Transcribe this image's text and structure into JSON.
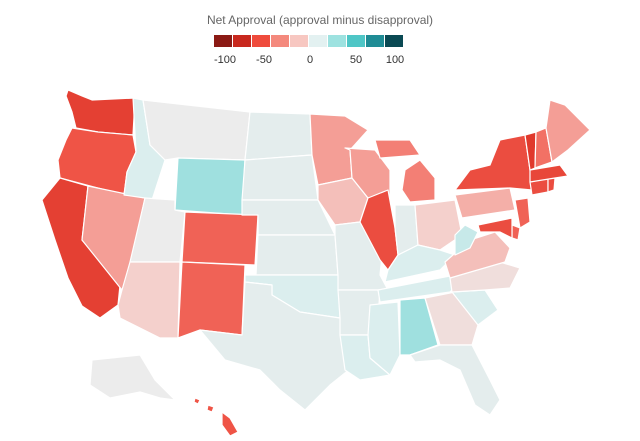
{
  "legend": {
    "title": "Net Approval (approval minus disapproval)",
    "ticks": [
      "-100",
      "-50",
      "0",
      "50",
      "100"
    ],
    "tick_values": [
      -100,
      -50,
      0,
      50,
      100
    ],
    "colors": [
      "#8b1a14",
      "#c8281e",
      "#ef4b3c",
      "#f4897d",
      "#f7c7c1",
      "#e3f1f1",
      "#9de2e0",
      "#4ec6c6",
      "#1f8c95",
      "#0a4953"
    ]
  },
  "map_data": {
    "type": "choropleth",
    "region": "United States",
    "value_label": "Net Approval",
    "states": [
      {
        "name": "Washington",
        "net_approval": -65
      },
      {
        "name": "Oregon",
        "net_approval": -50
      },
      {
        "name": "California",
        "net_approval": -65
      },
      {
        "name": "Nevada",
        "net_approval": -25
      },
      {
        "name": "Idaho",
        "net_approval": 10
      },
      {
        "name": "Montana",
        "net_approval": 0
      },
      {
        "name": "Wyoming",
        "net_approval": 25
      },
      {
        "name": "Utah",
        "net_approval": 0
      },
      {
        "name": "Arizona",
        "net_approval": -10
      },
      {
        "name": "Colorado",
        "net_approval": -45
      },
      {
        "name": "New Mexico",
        "net_approval": -45
      },
      {
        "name": "North Dakota",
        "net_approval": 5
      },
      {
        "name": "South Dakota",
        "net_approval": 5
      },
      {
        "name": "Nebraska",
        "net_approval": 5
      },
      {
        "name": "Kansas",
        "net_approval": 5
      },
      {
        "name": "Oklahoma",
        "net_approval": 10
      },
      {
        "name": "Texas",
        "net_approval": 5
      },
      {
        "name": "Minnesota",
        "net_approval": -25
      },
      {
        "name": "Iowa",
        "net_approval": -15
      },
      {
        "name": "Missouri",
        "net_approval": 5
      },
      {
        "name": "Arkansas",
        "net_approval": 5
      },
      {
        "name": "Louisiana",
        "net_approval": 10
      },
      {
        "name": "Wisconsin",
        "net_approval": -25
      },
      {
        "name": "Illinois",
        "net_approval": -55
      },
      {
        "name": "Michigan",
        "net_approval": -35
      },
      {
        "name": "Indiana",
        "net_approval": 5
      },
      {
        "name": "Ohio",
        "net_approval": -10
      },
      {
        "name": "Kentucky",
        "net_approval": 10
      },
      {
        "name": "Tennessee",
        "net_approval": 10
      },
      {
        "name": "Mississippi",
        "net_approval": 10
      },
      {
        "name": "Alabama",
        "net_approval": 25
      },
      {
        "name": "Georgia",
        "net_approval": -5
      },
      {
        "name": "Florida",
        "net_approval": 5
      },
      {
        "name": "South Carolina",
        "net_approval": 10
      },
      {
        "name": "North Carolina",
        "net_approval": -5
      },
      {
        "name": "Virginia",
        "net_approval": -15
      },
      {
        "name": "West Virginia",
        "net_approval": 15
      },
      {
        "name": "Pennsylvania",
        "net_approval": -20
      },
      {
        "name": "New York",
        "net_approval": -55
      },
      {
        "name": "New Jersey",
        "net_approval": -45
      },
      {
        "name": "Delaware",
        "net_approval": -45
      },
      {
        "name": "Maryland",
        "net_approval": -55
      },
      {
        "name": "Connecticut",
        "net_approval": -55
      },
      {
        "name": "Rhode Island",
        "net_approval": -55
      },
      {
        "name": "Massachusetts",
        "net_approval": -60
      },
      {
        "name": "Vermont",
        "net_approval": -70
      },
      {
        "name": "New Hampshire",
        "net_approval": -40
      },
      {
        "name": "Maine",
        "net_approval": -25
      },
      {
        "name": "Alaska",
        "net_approval": 0
      },
      {
        "name": "Hawaii",
        "net_approval": -50
      }
    ]
  }
}
